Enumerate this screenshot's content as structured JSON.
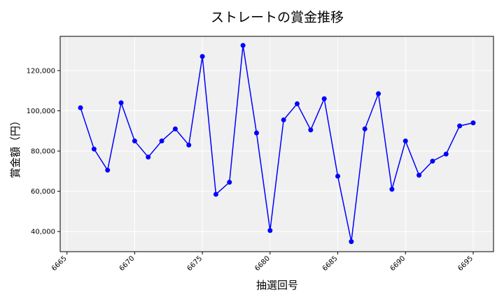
{
  "chart_data": {
    "type": "line",
    "title": "ストレートの賞金推移",
    "xlabel": "抽選回号",
    "ylabel": "賞金額（円）",
    "x": [
      6666,
      6667,
      6668,
      6669,
      6670,
      6671,
      6672,
      6673,
      6674,
      6675,
      6676,
      6677,
      6678,
      6679,
      6680,
      6681,
      6682,
      6683,
      6684,
      6685,
      6686,
      6687,
      6688,
      6689,
      6690,
      6691,
      6692,
      6693,
      6694,
      6695
    ],
    "series": [
      {
        "values": [
          101500,
          81000,
          70500,
          104000,
          85000,
          77000,
          85000,
          91000,
          83000,
          127000,
          58500,
          64500,
          132500,
          89000,
          40500,
          95500,
          103500,
          90500,
          106000,
          67500,
          35000,
          91000,
          108500,
          61000,
          85000,
          68000,
          75000,
          78500,
          92500,
          94000
        ]
      }
    ],
    "xticks": [
      6665,
      6670,
      6675,
      6680,
      6685,
      6690,
      6695
    ],
    "xtick_labels": [
      "6665",
      "6670",
      "6675",
      "6680",
      "6685",
      "6690",
      "6695"
    ],
    "yticks": [
      40000,
      60000,
      80000,
      100000,
      120000
    ],
    "ytick_labels": [
      "40,000",
      "60,000",
      "80,000",
      "100,000",
      "120,000"
    ],
    "xlim": [
      6664.5,
      6696.5
    ],
    "ylim": [
      30000,
      137000
    ],
    "grid": true,
    "line_color": "#0000ff",
    "background_color": "#f0f0f0"
  }
}
